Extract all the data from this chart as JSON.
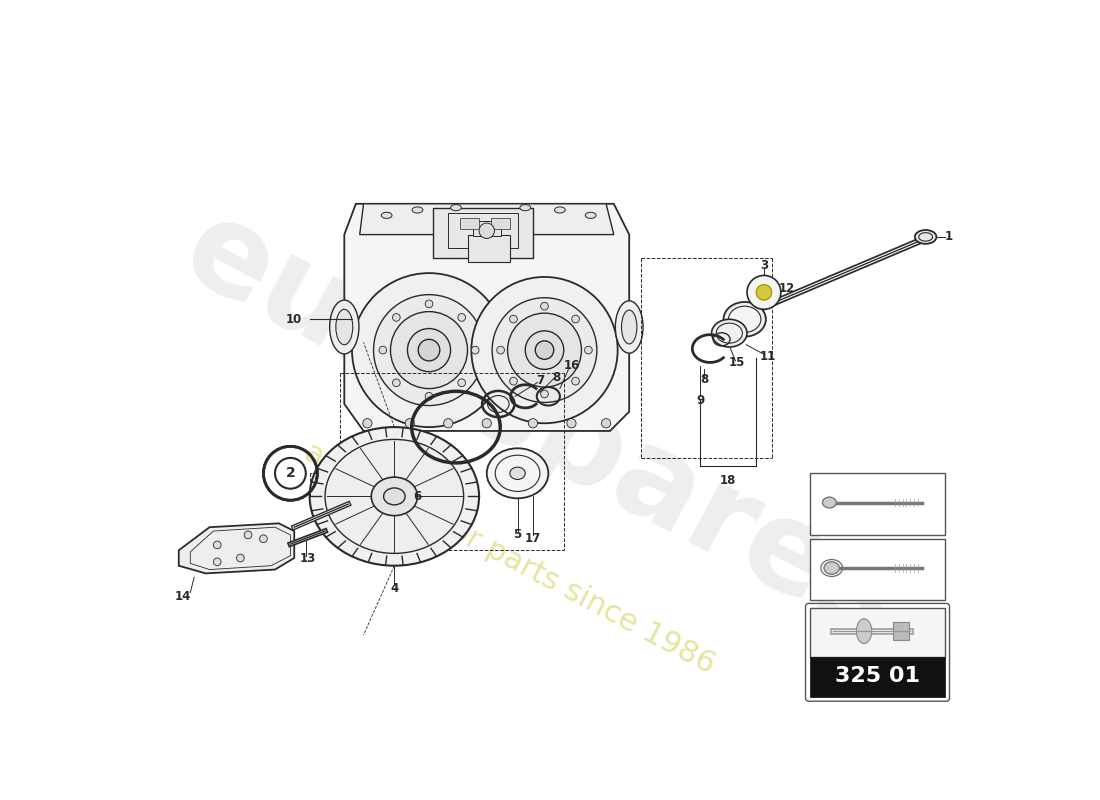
{
  "bg_color": "#ffffff",
  "line_color": "#2a2a2a",
  "light_line": "#888888",
  "catalog_number": "325 01",
  "watermark_text": "eurospares",
  "watermark_subtext": "a passion for parts since 1986",
  "accent_yellow": "#d4c840",
  "gray_fill": "#cccccc",
  "dark_fill": "#111111",
  "part_label_fontsize": 8.5
}
